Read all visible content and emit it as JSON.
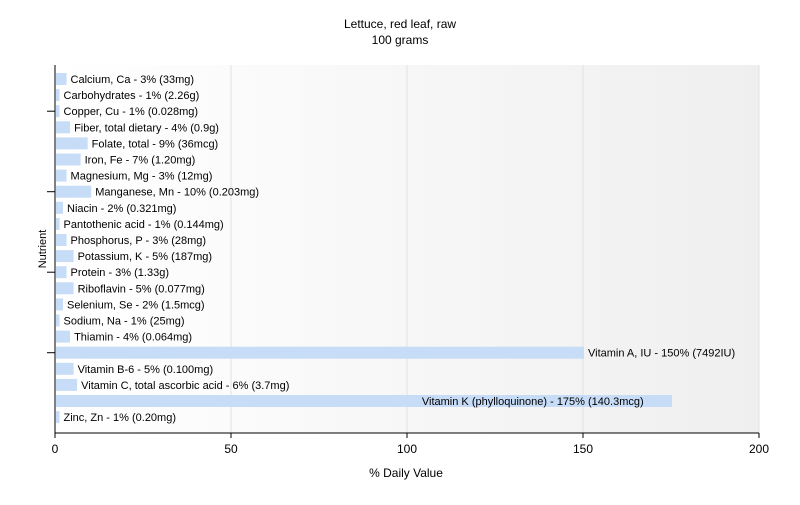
{
  "chart_data": {
    "type": "bar",
    "orientation": "horizontal",
    "title": "Lettuce, red leaf, raw",
    "subtitle": "100 grams",
    "xlabel": "% Daily Value",
    "ylabel": "Nutrient",
    "xlim": [
      0,
      200
    ],
    "xticks": [
      0,
      50,
      100,
      150,
      200
    ],
    "grid": true,
    "bar_color": "#c6dcf7",
    "categories": [
      "Calcium, Ca",
      "Carbohydrates",
      "Copper, Cu",
      "Fiber, total dietary",
      "Folate, total",
      "Iron, Fe",
      "Magnesium, Mg",
      "Manganese, Mn",
      "Niacin",
      "Pantothenic acid",
      "Phosphorus, P",
      "Potassium, K",
      "Protein",
      "Riboflavin",
      "Selenium, Se",
      "Sodium, Na",
      "Thiamin",
      "Vitamin A, IU",
      "Vitamin B-6",
      "Vitamin C, total ascorbic acid",
      "Vitamin K (phylloquinone)",
      "Zinc, Zn"
    ],
    "values": [
      3,
      1,
      1,
      4,
      9,
      7,
      3,
      10,
      2,
      1,
      3,
      5,
      3,
      5,
      2,
      1,
      4,
      150,
      5,
      6,
      175,
      1
    ],
    "labels": [
      "Calcium, Ca - 3% (33mg)",
      "Carbohydrates - 1% (2.26g)",
      "Copper, Cu - 1% (0.028mg)",
      "Fiber, total dietary - 4% (0.9g)",
      "Folate, total - 9% (36mcg)",
      "Iron, Fe - 7% (1.20mg)",
      "Magnesium, Mg - 3% (12mg)",
      "Manganese, Mn - 10% (0.203mg)",
      "Niacin - 2% (0.321mg)",
      "Pantothenic acid - 1% (0.144mg)",
      "Phosphorus, P - 3% (28mg)",
      "Potassium, K - 5% (187mg)",
      "Protein - 3% (1.33g)",
      "Riboflavin - 5% (0.077mg)",
      "Selenium, Se - 2% (1.5mcg)",
      "Sodium, Na - 1% (25mg)",
      "Thiamin - 4% (0.064mg)",
      "Vitamin A, IU - 150% (7492IU)",
      "Vitamin B-6 - 5% (0.100mg)",
      "Vitamin C, total ascorbic acid - 6% (3.7mg)",
      "Vitamin K (phylloquinone) - 175% (140.3mcg)",
      "Zinc, Zn - 1% (0.20mg)"
    ]
  }
}
